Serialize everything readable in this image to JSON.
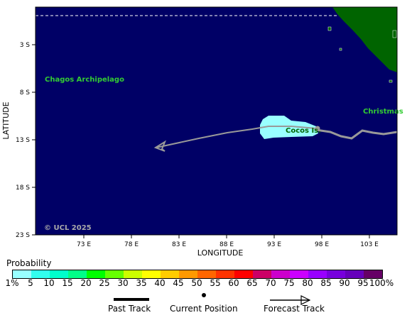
{
  "map": {
    "copyright": "© UCL 2025",
    "ocean_color": "#000066",
    "land_color": "#006400",
    "track_color": "#999999",
    "x_axis_title": "LONGITUDE",
    "y_axis_title": "LATITUDE",
    "y_ticks": [
      "3 S",
      "8 S",
      "13 S",
      "18 S",
      "23 S"
    ],
    "x_ticks": [
      "73 E",
      "78 E",
      "83 E",
      "88 E",
      "93 E",
      "98 E",
      "103 E"
    ],
    "place_labels": [
      "Chagos Archipelago",
      "Cocos Is.",
      "Christmas"
    ],
    "place_label_color": "#33cc33"
  },
  "legend": {
    "title": "Probability",
    "labels": [
      "1%",
      "5",
      "10",
      "15",
      "20",
      "25",
      "30",
      "35",
      "40",
      "45",
      "50",
      "55",
      "60",
      "65",
      "70",
      "75",
      "80",
      "85",
      "90",
      "95",
      "100%"
    ],
    "colors": [
      "#99ffff",
      "#33ffee",
      "#00ffcc",
      "#00ff88",
      "#00ff00",
      "#66ff00",
      "#ccff00",
      "#ffff00",
      "#ffcc00",
      "#ff9900",
      "#ff6600",
      "#ff3300",
      "#ff0000",
      "#cc0066",
      "#cc00cc",
      "#cc00ff",
      "#9900ff",
      "#7700dd",
      "#6600bb",
      "#660066"
    ]
  },
  "track_key": {
    "past": "Past Track",
    "current": "Current Position",
    "forecast": "Forecast Track"
  }
}
